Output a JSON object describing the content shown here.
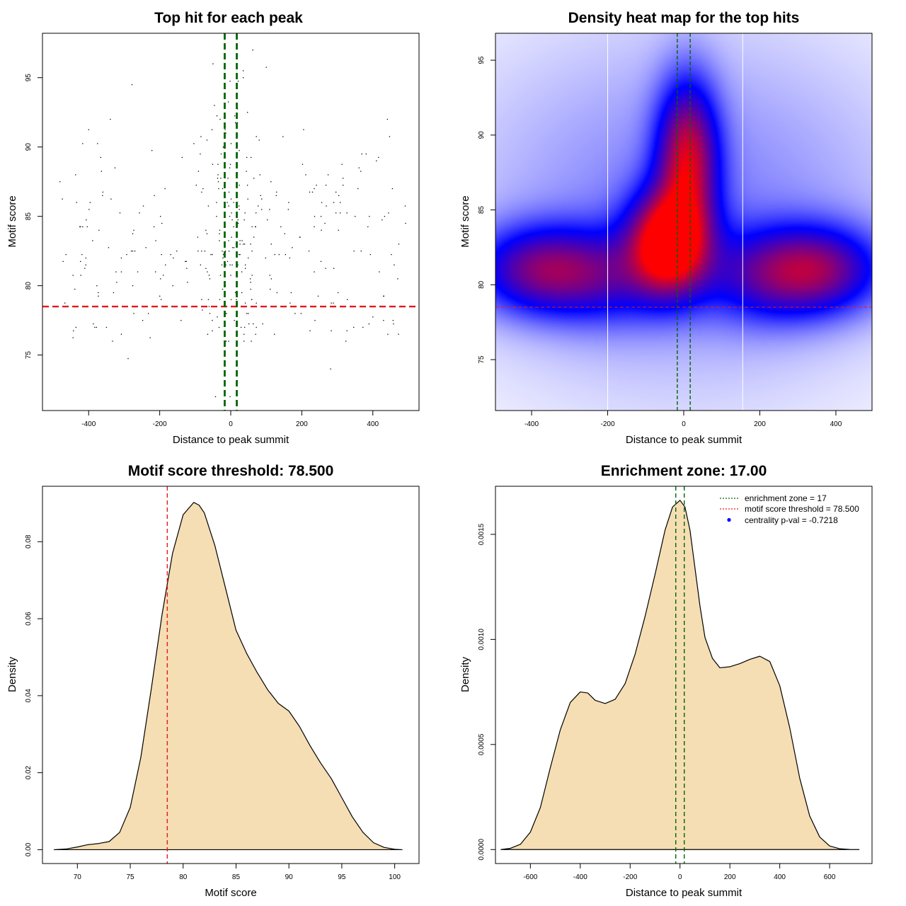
{
  "colors": {
    "threshold_line": "#e41a1c",
    "zone_line": "#006400",
    "density_fill": "#f5deb3",
    "heat_low": "#ffffff",
    "heat_mid": "#0000ff",
    "heat_high": "#ff0000",
    "legend_point": "#0000ff"
  },
  "chart_data": [
    {
      "id": "scatter",
      "type": "scatter",
      "title": "Top hit for each peak",
      "xlabel": "Distance to peak summit",
      "ylabel": "Motif score",
      "xlim": [
        -530,
        530
      ],
      "ylim": [
        71.0,
        98.2
      ],
      "xticks": [
        -400,
        -200,
        0,
        200,
        400
      ],
      "yticks": [
        75,
        80,
        85,
        90,
        95
      ],
      "hline": 78.5,
      "vlines": [
        -17,
        17
      ],
      "grid": false,
      "point_count": 380
    },
    {
      "id": "heatmap",
      "type": "heatmap",
      "title": "Density heat map for the top hits",
      "xlabel": "Distance to peak summit",
      "ylabel": "Motif score",
      "xlim": [
        -495,
        495
      ],
      "ylim": [
        71.6,
        96.8
      ],
      "xticks": [
        -400,
        -200,
        0,
        200,
        400
      ],
      "yticks": [
        75,
        80,
        85,
        90,
        95
      ],
      "hline": 78.5,
      "vlines": [
        -17,
        17
      ],
      "white_vlines": [
        -200,
        155
      ],
      "density_blobs": [
        {
          "x": -40,
          "y": 82.8,
          "sx": 70,
          "sy": 2.3,
          "w": 1.0
        },
        {
          "x": 10,
          "y": 88.5,
          "sx": 55,
          "sy": 3.5,
          "w": 0.75
        },
        {
          "x": -380,
          "y": 81.0,
          "sx": 120,
          "sy": 2.0,
          "w": 0.55
        },
        {
          "x": 350,
          "y": 81.0,
          "sx": 120,
          "sy": 2.0,
          "w": 0.58
        },
        {
          "x": -200,
          "y": 80.5,
          "sx": 120,
          "sy": 2.2,
          "w": 0.3
        },
        {
          "x": 200,
          "y": 80.5,
          "sx": 120,
          "sy": 2.2,
          "w": 0.28
        },
        {
          "x": 0,
          "y": 85.0,
          "sx": 400,
          "sy": 8.0,
          "w": 0.18
        }
      ]
    },
    {
      "id": "score-density",
      "type": "area",
      "title": "Motif score threshold: 78.500",
      "xlabel": "Motif score",
      "ylabel": "Density",
      "xlim": [
        66.7,
        102.3
      ],
      "ylim": [
        -0.0036,
        0.0944
      ],
      "xticks": [
        70,
        75,
        80,
        85,
        90,
        95,
        100
      ],
      "yticks": [
        0.0,
        0.02,
        0.04,
        0.06,
        0.08
      ],
      "ytick_labels": [
        "0.00",
        "0.02",
        "0.04",
        "0.06",
        "0.08"
      ],
      "vline": 78.5,
      "x": [
        67.8,
        69,
        70,
        71,
        72,
        73,
        74,
        75,
        76,
        77,
        78,
        79,
        80,
        81,
        81.5,
        82,
        83,
        84,
        85,
        86,
        87,
        88,
        89,
        90,
        91,
        92,
        93,
        94,
        95,
        96,
        97,
        98,
        99,
        100,
        100.7
      ],
      "y": [
        0.0,
        0.0002,
        0.0007,
        0.0013,
        0.0016,
        0.0021,
        0.0045,
        0.011,
        0.024,
        0.042,
        0.061,
        0.077,
        0.087,
        0.0902,
        0.0895,
        0.0875,
        0.079,
        0.068,
        0.057,
        0.051,
        0.046,
        0.0415,
        0.038,
        0.036,
        0.032,
        0.027,
        0.0225,
        0.0185,
        0.0135,
        0.0085,
        0.0045,
        0.0018,
        0.0006,
        0.0001,
        0.0
      ]
    },
    {
      "id": "distance-density",
      "type": "area",
      "title": "Enrichment zone: 17.00",
      "xlabel": "Distance to peak summit",
      "ylabel": "Density",
      "xlim": [
        -740,
        770
      ],
      "ylim": [
        -6.65e-05,
        0.0017288
      ],
      "xticks": [
        -600,
        -400,
        -200,
        0,
        200,
        400,
        600
      ],
      "yticks": [
        0.0,
        0.0005,
        0.001,
        0.0015
      ],
      "ytick_labels": [
        "0.0000",
        "0.0005",
        "0.0010",
        "0.0015"
      ],
      "vlines": [
        -17,
        17
      ],
      "x": [
        -718,
        -680,
        -640,
        -600,
        -560,
        -520,
        -480,
        -440,
        -400,
        -370,
        -340,
        -300,
        -260,
        -220,
        -180,
        -140,
        -100,
        -60,
        -30,
        0,
        20,
        40,
        60,
        80,
        100,
        130,
        160,
        200,
        240,
        280,
        320,
        360,
        400,
        440,
        480,
        520,
        560,
        600,
        640,
        680,
        718
      ],
      "y": [
        0.0,
        6e-06,
        2.5e-05,
        8.3e-05,
        0.0002,
        0.00039,
        0.00057,
        0.0007,
        0.00075,
        0.000745,
        0.00071,
        0.000695,
        0.000715,
        0.00079,
        0.00093,
        0.00111,
        0.00131,
        0.00152,
        0.00163,
        0.001662,
        0.00163,
        0.00152,
        0.00134,
        0.00116,
        0.00101,
        0.00091,
        0.000865,
        0.00087,
        0.000885,
        0.000905,
        0.00092,
        0.000895,
        0.00078,
        0.00058,
        0.00034,
        0.00016,
        6e-05,
        1.7e-05,
        4e-06,
        5e-07,
        0.0
      ]
    }
  ],
  "legend": {
    "zone_label": "enrichment zone = 17",
    "threshold_label": "motif score threshold = 78.500",
    "pval_label": "centrality p-val = -0.7218"
  }
}
